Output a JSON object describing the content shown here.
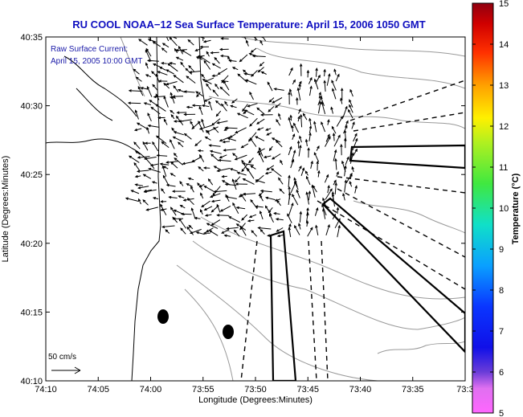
{
  "chart_data": {
    "type": "map",
    "title": "RU COOL  NOAA−12  Sea Surface Temperature:  April 15, 2006 1050 GMT",
    "xlabel": "Longitude (Degrees:Minutes)",
    "ylabel": "Latitude (Degrees:Minutes)",
    "x_ticks": [
      "74:10",
      "74:05",
      "74:00",
      "73:55",
      "73:50",
      "73:45",
      "73:40",
      "73:35",
      "73:3"
    ],
    "y_ticks": [
      "40:10",
      "40:15",
      "40:20",
      "40:25",
      "40:30",
      "40:35"
    ],
    "annotation_lines": [
      "Raw Surface Current:",
      "April 15, 2005 10:00 GMT"
    ],
    "scale_label": "50 cm/s",
    "colorbar": {
      "label": "Temperature (°C)",
      "ticks": [
        "5",
        "6",
        "7",
        "8",
        "9",
        "10",
        "11",
        "12",
        "13",
        "14",
        "15"
      ],
      "range": [
        5,
        15
      ]
    },
    "grid": false
  }
}
